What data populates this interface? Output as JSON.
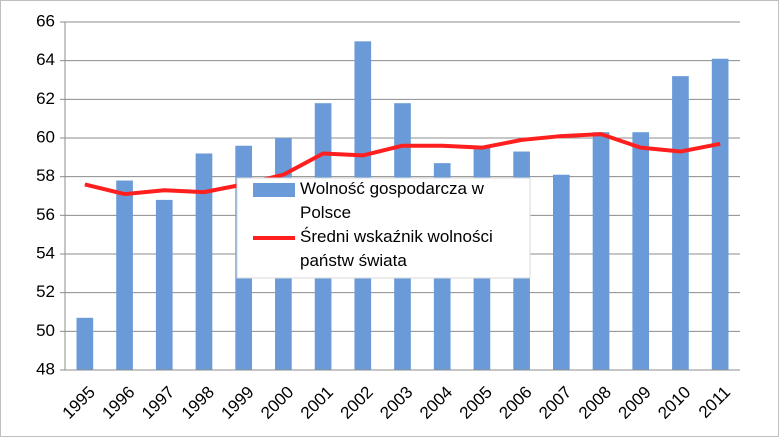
{
  "chart_data": {
    "type": "bar",
    "categories": [
      "1995",
      "1996",
      "1997",
      "1998",
      "1999",
      "2000",
      "2001",
      "2002",
      "2003",
      "2004",
      "2005",
      "2006",
      "2007",
      "2008",
      "2009",
      "2010",
      "2011"
    ],
    "series": [
      {
        "name": "Wolność gospodarcza w Polsce",
        "type": "bar",
        "color": "#6a9bd8",
        "values": [
          50.7,
          57.8,
          56.8,
          59.2,
          59.6,
          60.0,
          61.8,
          65.0,
          61.8,
          58.7,
          59.6,
          59.3,
          58.1,
          60.3,
          60.3,
          63.2,
          64.1
        ]
      },
      {
        "name": "Średni wskaźnik wolności państw świata",
        "type": "line",
        "color": "#ff1f1f",
        "values": [
          57.6,
          57.1,
          57.3,
          57.2,
          57.6,
          58.1,
          59.2,
          59.1,
          59.6,
          59.6,
          59.5,
          59.9,
          60.1,
          60.2,
          59.5,
          59.3,
          59.7
        ]
      }
    ],
    "ylim": [
      48,
      66
    ],
    "yticks": [
      48,
      50,
      52,
      54,
      56,
      58,
      60,
      62,
      64,
      66
    ],
    "grid": true
  }
}
